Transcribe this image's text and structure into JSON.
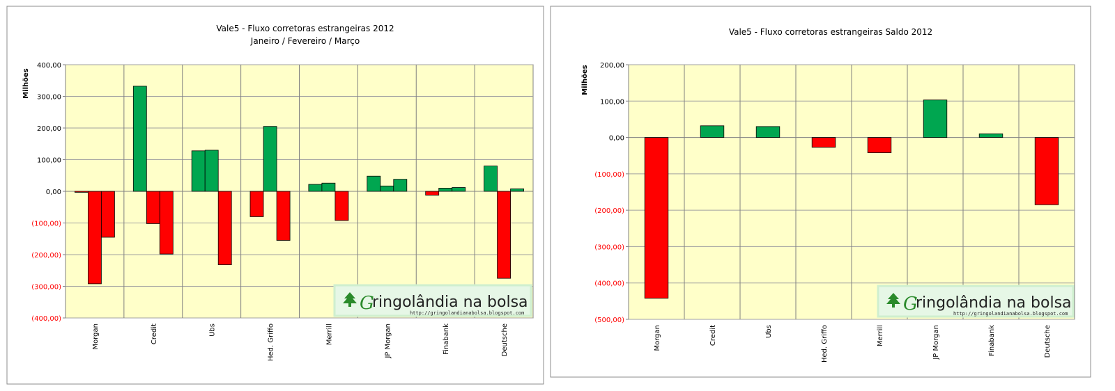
{
  "colors": {
    "positive": "#00A650",
    "negative": "#FF0000",
    "plot_bg": "#FFFFC9",
    "grid": "#A0A0A0",
    "watermark_bg": "#E6F7E6",
    "watermark_border": "#CFEFCF"
  },
  "watermark": {
    "first_letter": "G",
    "brand": "ringolândia na bolsa",
    "url": "http://gringolandianabolsa.blogspot.com",
    "icon": "tree-icon"
  },
  "chart_data": [
    {
      "type": "bar",
      "title": "Vale5 - Fluxo corretoras estrangeiras 2012",
      "subtitle": "Janeiro / Fevereiro / Março",
      "ylabel": "Milhões",
      "xlabel": "",
      "ylim": [
        -400,
        400
      ],
      "ytick_values": [
        400,
        300,
        200,
        100,
        0,
        -100,
        -200,
        -300,
        -400
      ],
      "ytick_labels": [
        "400,00",
        "300,00",
        "200,00",
        "100,00",
        "0,00",
        "(100,00)",
        "(200,00)",
        "(300,00)",
        "(400,00)"
      ],
      "categories": [
        "Morgan",
        "Credit",
        "Ubs",
        "Hed. Griffo",
        "Merrill",
        "JP Morgan",
        "Finabank",
        "Deutsche"
      ],
      "series": [
        {
          "name": "Janeiro",
          "values": [
            -3,
            332,
            128,
            -80,
            22,
            48,
            -12,
            80
          ]
        },
        {
          "name": "Fevereiro",
          "values": [
            -292,
            -102,
            130,
            205,
            26,
            17,
            10,
            -275
          ]
        },
        {
          "name": "Março",
          "values": [
            -145,
            -198,
            -232,
            -155,
            -92,
            38,
            12,
            8
          ]
        }
      ],
      "grid": true,
      "legend": "none"
    },
    {
      "type": "bar",
      "title": "Vale5 - Fluxo corretoras estrangeiras Saldo 2012",
      "ylabel": "Milhões",
      "xlabel": "",
      "ylim": [
        -500,
        200
      ],
      "ytick_values": [
        200,
        100,
        0,
        -100,
        -200,
        -300,
        -400,
        -500
      ],
      "ytick_labels": [
        "200,00",
        "100,00",
        "0,00",
        "(100,00)",
        "(200,00)",
        "(300,00)",
        "(400,00)",
        "(500,00)"
      ],
      "categories": [
        "Morgan",
        "Credit",
        "Ubs",
        "Hed. Griffo",
        "Merrill",
        "JP Morgan",
        "Finabank",
        "Deutsche"
      ],
      "series": [
        {
          "name": "Saldo",
          "values": [
            -442,
            32,
            30,
            -27,
            -42,
            103,
            10,
            -185
          ]
        }
      ],
      "grid": true,
      "legend": "none"
    }
  ]
}
